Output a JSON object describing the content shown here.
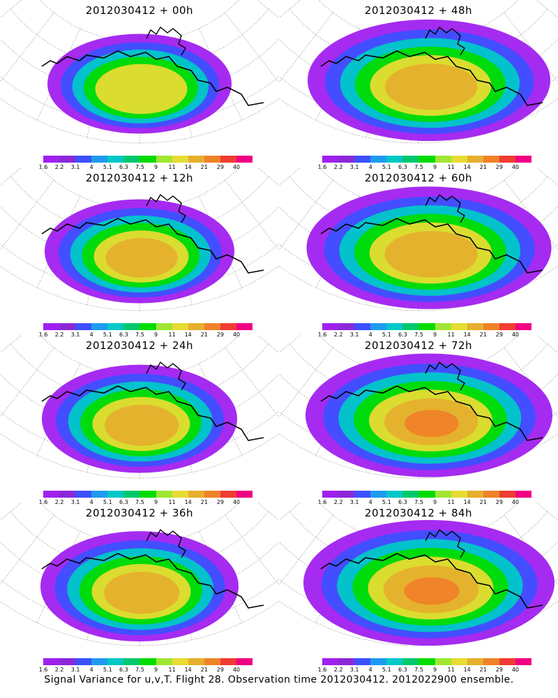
{
  "panels": [
    {
      "title": "2012030412 + 00h"
    },
    {
      "title": "2012030412 + 48h"
    },
    {
      "title": "2012030412 + 12h"
    },
    {
      "title": "2012030412 + 60h"
    },
    {
      "title": "2012030412 + 24h"
    },
    {
      "title": "2012030412 + 72h"
    },
    {
      "title": "2012030412 + 36h"
    },
    {
      "title": "2012030412 + 84h"
    }
  ],
  "colorbar": {
    "colors": [
      "#a020f0",
      "#8c28d8",
      "#3c50ff",
      "#1e9bf0",
      "#00c8c8",
      "#00c86e",
      "#00dc00",
      "#a0e632",
      "#e6dc32",
      "#e6af2d",
      "#f08228",
      "#f03c32",
      "#f00082"
    ],
    "labels": [
      "1.6",
      "2.2",
      "3.1",
      "4",
      "5.1",
      "6.3",
      "7.5",
      "9",
      "11",
      "14",
      "21",
      "29",
      "40"
    ]
  },
  "footer": "Signal Variance for u,v,T. Flight 28. Observation time 2012030412. 2012022900 ensemble."
}
